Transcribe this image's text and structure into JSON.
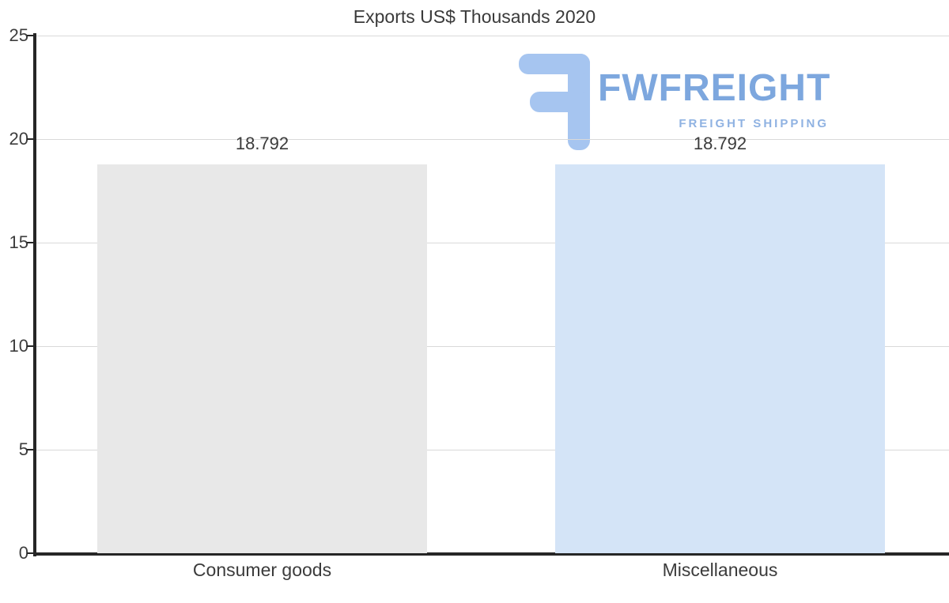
{
  "chart_data": {
    "type": "bar",
    "title": "Exports US$ Thousands 2020",
    "categories": [
      "Consumer goods",
      "Miscellaneous"
    ],
    "values": [
      18.792,
      18.792
    ],
    "value_labels": [
      "18.792",
      "18.792"
    ],
    "bar_colors": [
      "#e8e8e8",
      "#d4e4f7"
    ],
    "xlabel": "",
    "ylabel": "",
    "ylim": [
      0,
      25
    ],
    "yticks": [
      0,
      5,
      10,
      15,
      20,
      25
    ],
    "grid": true,
    "legend": "none"
  },
  "watermark": {
    "brand": "FWFREIGHT",
    "tagline": "FREIGHT SHIPPING",
    "brand_color": "#7da7de",
    "tagline_color": "#8fb2e2",
    "icon_color": "#a6c5f0"
  },
  "colors": {
    "background": "#ffffff",
    "axis": "#262626",
    "gridline": "#d9d9d9",
    "text": "#3b3b3b"
  }
}
